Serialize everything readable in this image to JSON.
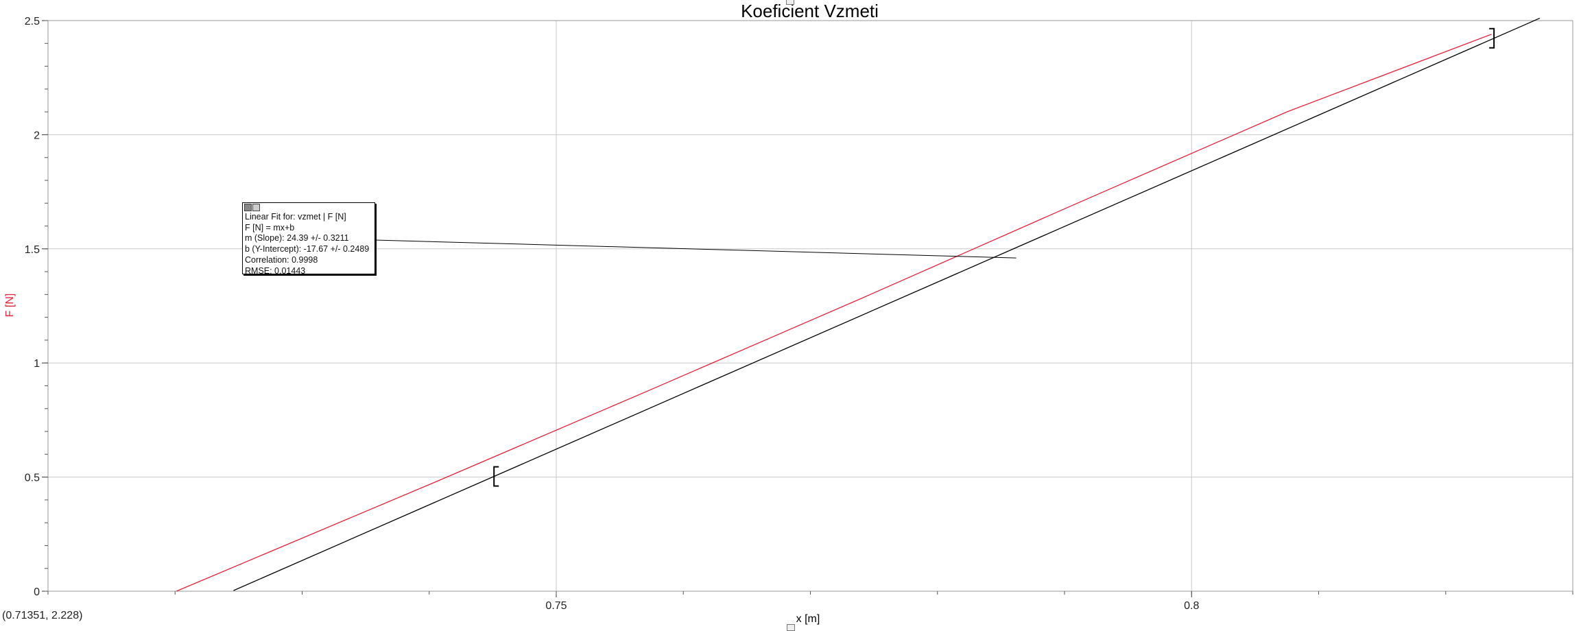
{
  "chart_data": {
    "type": "line",
    "title": "Koeficient Vzmeti",
    "xlabel": "x [m]",
    "ylabel": "F [N]",
    "xlim": [
      0.71,
      0.83
    ],
    "ylim": [
      0,
      2.5
    ],
    "x_ticks": [
      0.75,
      0.8
    ],
    "x_tick_labels": [
      "0.75",
      "0.8"
    ],
    "y_ticks": [
      0,
      0.5,
      1,
      1.5,
      2,
      2.5
    ],
    "y_tick_labels": [
      "0",
      "0.5",
      "1",
      "1.5",
      "2",
      "2.5"
    ],
    "grid": true,
    "series": [
      {
        "values_x": [
          0.7201,
          0.7405,
          0.7571,
          0.7739,
          0.7906,
          0.8075,
          0.8236
        ],
        "values_y": [
          0.0,
          0.479,
          0.875,
          1.28,
          1.69,
          2.1,
          2.44
        ],
        "color": "#e8213a"
      }
    ],
    "fit_line": {
      "slope": 24.39,
      "intercept": -17.67,
      "color": "#000000",
      "x_range": [
        0.7246,
        0.8274
      ]
    },
    "selection_brackets": {
      "x_start": 0.7451,
      "x_end": 0.8238
    },
    "annotation_leader": {
      "x": 0.7862,
      "y": 1.46
    }
  },
  "fit_box": {
    "lines": [
      "Linear Fit for: vzmet | F [N]",
      "F [N] = mx+b",
      "m (Slope): 24.39 +/- 0.3211",
      "b (Y-Intercept): -17.67 +/- 0.2489",
      "Correlation: 0.9998",
      "RMSE: 0.01443"
    ]
  },
  "coordinate_readout": "(0.71351, 2.228)",
  "colors": {
    "data": "#e8213a",
    "fit": "#000000",
    "grid": "#c8c8c8",
    "ylabel": "#e8213a"
  }
}
